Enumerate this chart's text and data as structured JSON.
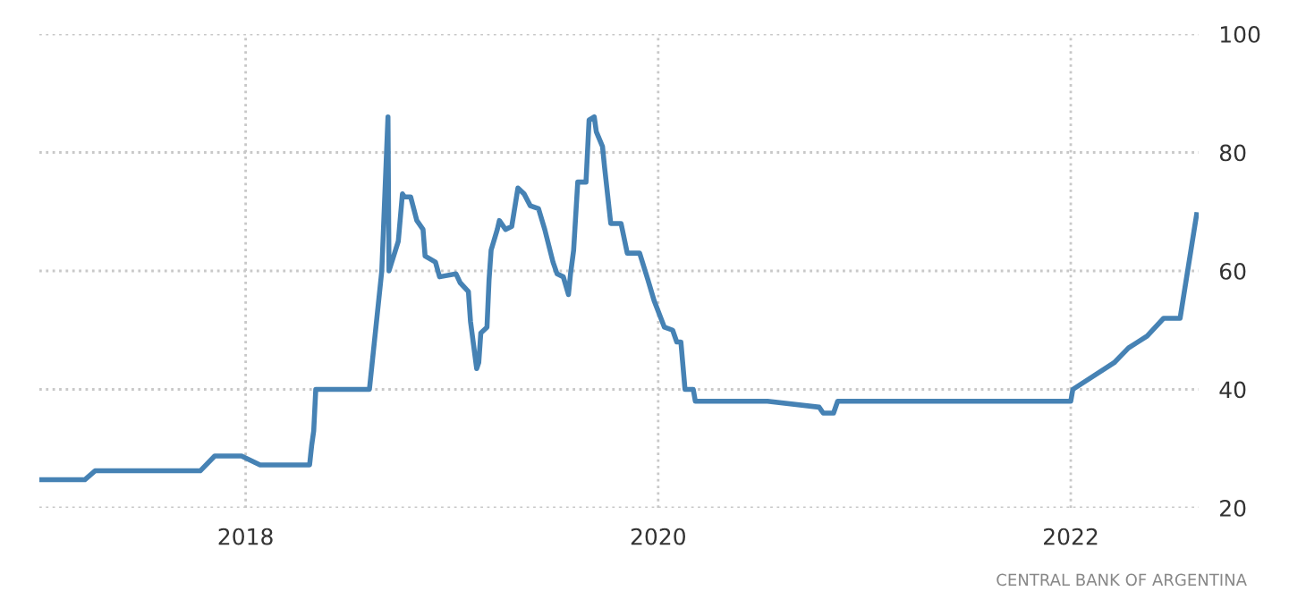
{
  "chart_data": {
    "type": "line",
    "x": [
      2017.0,
      2017.22,
      2017.27,
      2017.78,
      2017.85,
      2017.98,
      2018.07,
      2018.31,
      2018.32,
      2018.33,
      2018.34,
      2018.6,
      2018.66,
      2018.69,
      2018.695,
      2018.74,
      2018.76,
      2018.77,
      2018.8,
      2018.83,
      2018.86,
      2018.87,
      2018.92,
      2018.94,
      2019.02,
      2019.04,
      2019.08,
      2019.09,
      2019.12,
      2019.13,
      2019.14,
      2019.17,
      2019.18,
      2019.19,
      2019.22,
      2019.23,
      2019.26,
      2019.29,
      2019.32,
      2019.35,
      2019.38,
      2019.42,
      2019.45,
      2019.49,
      2019.51,
      2019.54,
      2019.565,
      2019.575,
      2019.59,
      2019.61,
      2019.65,
      2019.665,
      2019.69,
      2019.7,
      2019.73,
      2019.74,
      2019.77,
      2019.82,
      2019.85,
      2019.91,
      2019.95,
      2019.98,
      2020.03,
      2020.07,
      2020.09,
      2020.11,
      2020.12,
      2020.13,
      2020.17,
      2020.18,
      2020.53,
      2020.78,
      2020.8,
      2020.85,
      2020.87,
      2022.0,
      2022.01,
      2022.21,
      2022.28,
      2022.37,
      2022.45,
      2022.53,
      2022.61
    ],
    "series": [
      {
        "color": "#4682b4",
        "values": [
          24.75,
          24.75,
          26.25,
          26.25,
          28.75,
          28.75,
          27.25,
          27.25,
          30.5,
          33,
          40,
          40,
          60,
          86,
          60,
          65,
          73,
          72.5,
          72.5,
          68.5,
          67,
          62.5,
          61.5,
          59,
          59.5,
          58,
          56.5,
          51.5,
          43.5,
          44.5,
          49.5,
          50.5,
          58.5,
          63.5,
          67,
          68.5,
          67,
          67.5,
          74,
          73,
          71,
          70.5,
          67,
          61.5,
          59.5,
          59,
          56,
          59.5,
          63.5,
          75,
          75,
          85.5,
          86,
          83.5,
          81,
          77.5,
          68,
          68,
          63,
          63,
          58.5,
          55,
          50.5,
          50,
          48,
          48,
          44,
          40,
          40,
          38,
          38,
          37,
          36,
          36,
          38,
          38,
          40,
          44.5,
          47,
          49,
          52,
          52,
          69.5
        ]
      }
    ],
    "xlim": [
      2017.0,
      2022.62
    ],
    "ylim": [
      20,
      100
    ],
    "xticks": [
      2018,
      2020,
      2022
    ],
    "yticks": [
      20,
      40,
      60,
      80,
      100
    ],
    "grid": true,
    "line_style": "solid",
    "annotations": [
      "CENTRAL BANK OF ARGENTINA"
    ]
  }
}
